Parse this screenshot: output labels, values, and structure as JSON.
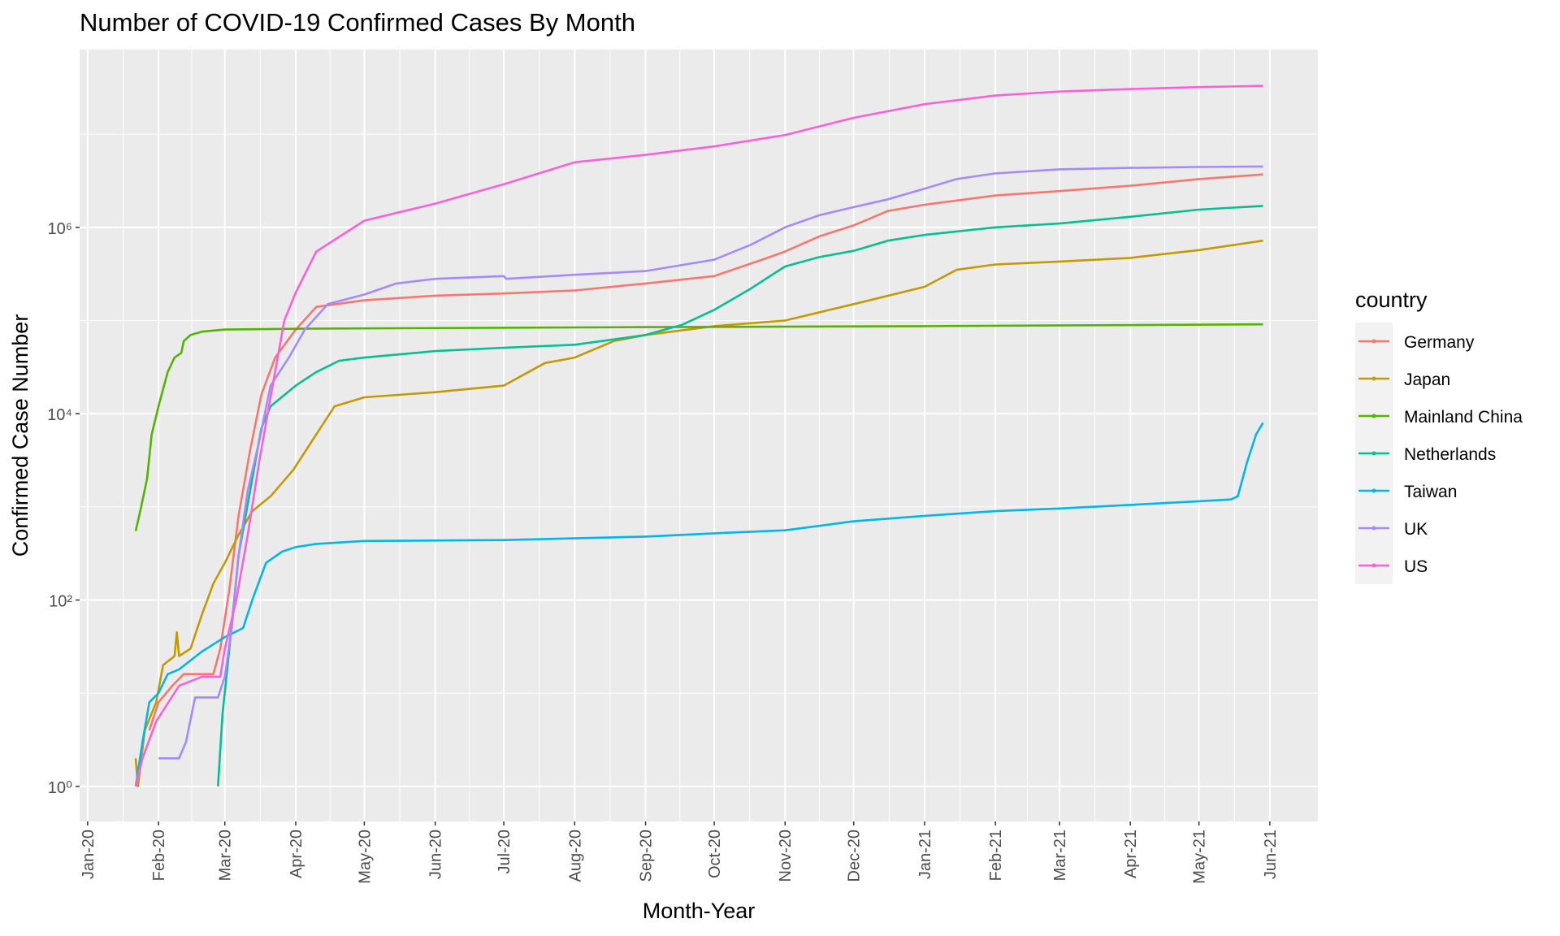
{
  "chart_data": {
    "type": "line",
    "title": "Number of COVID-19 Confirmed Cases By Month",
    "x_label": "Month-Year",
    "y_label": "Confirmed Case Number",
    "legend_title": "country",
    "legend_position": "right",
    "log_y": true,
    "grid": true,
    "xlim": [
      -3.5,
      538
    ],
    "xticks": [
      {
        "value": 0,
        "label": "Jan-20"
      },
      {
        "value": 31,
        "label": "Feb-20"
      },
      {
        "value": 60,
        "label": "Mar-20"
      },
      {
        "value": 91,
        "label": "Apr-20"
      },
      {
        "value": 121,
        "label": "May-20"
      },
      {
        "value": 152,
        "label": "Jun-20"
      },
      {
        "value": 182,
        "label": "Jul-20"
      },
      {
        "value": 213,
        "label": "Aug-20"
      },
      {
        "value": 244,
        "label": "Sep-20"
      },
      {
        "value": 274,
        "label": "Oct-20"
      },
      {
        "value": 305,
        "label": "Nov-20"
      },
      {
        "value": 335,
        "label": "Dec-20"
      },
      {
        "value": 366,
        "label": "Jan-21"
      },
      {
        "value": 397,
        "label": "Feb-21"
      },
      {
        "value": 425,
        "label": "Mar-21"
      },
      {
        "value": 456,
        "label": "Apr-21"
      },
      {
        "value": 486,
        "label": "May-21"
      },
      {
        "value": 517,
        "label": "Jun-21"
      }
    ],
    "ylim": [
      0.42,
      81000000
    ],
    "yticks": [
      {
        "value": 1,
        "label": "10⁰"
      },
      {
        "value": 100,
        "label": "10²"
      },
      {
        "value": 10000,
        "label": "10⁴"
      },
      {
        "value": 1000000,
        "label": "10⁶"
      }
    ],
    "series": [
      {
        "name": "Germany",
        "color": "#F8766D",
        "x": [
          27,
          31,
          37,
          42,
          55,
          58,
          62,
          66,
          71,
          76,
          82,
          91,
          100,
          121,
          152,
          182,
          213,
          244,
          274,
          295,
          305,
          320,
          335,
          350,
          366,
          397,
          425,
          456,
          486,
          514
        ],
        "values": [
          4,
          8,
          12,
          16,
          16,
          30,
          130,
          800,
          4000,
          16000,
          40000,
          80000,
          140000,
          165000,
          185000,
          195000,
          210000,
          250000,
          300000,
          450000,
          550000,
          800000,
          1050000,
          1500000,
          1750000,
          2200000,
          2450000,
          2800000,
          3300000,
          3700000
        ]
      },
      {
        "name": "Japan",
        "color": "#C49A00",
        "x": [
          21,
          22,
          25,
          30,
          33,
          38,
          39,
          40,
          45,
          50,
          55,
          60,
          66,
          72,
          80,
          90,
          100,
          108,
          121,
          152,
          182,
          200,
          213,
          230,
          244,
          274,
          305,
          335,
          366,
          380,
          397,
          425,
          456,
          486,
          514
        ],
        "values": [
          2,
          1,
          4,
          8,
          20,
          25,
          45,
          25,
          30,
          70,
          150,
          250,
          500,
          900,
          1300,
          2500,
          6000,
          12000,
          15000,
          17000,
          20000,
          35000,
          40000,
          60000,
          70000,
          87000,
          100000,
          150000,
          230000,
          350000,
          400000,
          430000,
          470000,
          570000,
          720000
        ]
      },
      {
        "name": "Mainland China",
        "color": "#53B400",
        "x": [
          21,
          23,
          26,
          28,
          31,
          35,
          38,
          41,
          42,
          45,
          50,
          60,
          100,
          244,
          366,
          514
        ],
        "values": [
          550,
          900,
          2000,
          6000,
          12000,
          28000,
          40000,
          45000,
          60000,
          70000,
          76000,
          80000,
          82000,
          85000,
          87000,
          91000
        ]
      },
      {
        "name": "Netherlands",
        "color": "#00C094",
        "x": [
          57,
          59,
          62,
          66,
          72,
          76,
          80,
          91,
          100,
          110,
          121,
          152,
          182,
          213,
          244,
          260,
          274,
          290,
          305,
          320,
          335,
          350,
          366,
          397,
          425,
          456,
          486,
          514
        ],
        "values": [
          1,
          6,
          30,
          300,
          2000,
          7000,
          12000,
          20000,
          28000,
          37000,
          40000,
          47000,
          51000,
          55000,
          70000,
          90000,
          130000,
          220000,
          380000,
          480000,
          560000,
          720000,
          830000,
          1000000,
          1100000,
          1300000,
          1550000,
          1700000
        ]
      },
      {
        "name": "Taiwan",
        "color": "#00B6EB",
        "x": [
          21,
          24,
          27,
          31,
          35,
          40,
          50,
          60,
          68,
          72,
          78,
          85,
          91,
          100,
          121,
          182,
          244,
          274,
          305,
          335,
          366,
          397,
          425,
          456,
          486,
          500,
          503,
          507,
          511,
          514
        ],
        "values": [
          1,
          3,
          8,
          10,
          16,
          18,
          28,
          40,
          50,
          100,
          250,
          330,
          370,
          400,
          430,
          440,
          480,
          520,
          560,
          700,
          800,
          900,
          960,
          1050,
          1150,
          1200,
          1300,
          3000,
          6000,
          8000
        ]
      },
      {
        "name": "UK",
        "color": "#A58AFF",
        "x": [
          31,
          40,
          43,
          47,
          57,
          60,
          63,
          66,
          70,
          75,
          80,
          88,
          95,
          105,
          121,
          135,
          152,
          182,
          183,
          213,
          244,
          274,
          290,
          305,
          320,
          335,
          350,
          366,
          380,
          397,
          425,
          456,
          486,
          514
        ],
        "values": [
          2,
          2,
          3,
          9,
          9,
          15,
          50,
          300,
          1500,
          5000,
          20000,
          40000,
          80000,
          150000,
          190000,
          250000,
          280000,
          300000,
          280000,
          310000,
          340000,
          450000,
          650000,
          1000000,
          1350000,
          1650000,
          2000000,
          2600000,
          3300000,
          3800000,
          4200000,
          4350000,
          4450000,
          4500000
        ]
      },
      {
        "name": "US",
        "color": "#FB61D7",
        "x": [
          21,
          24,
          30,
          40,
          50,
          58,
          60,
          65,
          70,
          75,
          80,
          86,
          91,
          100,
          121,
          152,
          182,
          213,
          244,
          274,
          305,
          335,
          366,
          397,
          425,
          456,
          486,
          514
        ],
        "values": [
          1,
          2,
          5,
          12,
          15,
          15,
          30,
          100,
          500,
          3000,
          15000,
          100000,
          200000,
          550000,
          1180000,
          1800000,
          2900000,
          5000000,
          6000000,
          7400000,
          9800000,
          15000000,
          21000000,
          26000000,
          28700000,
          30500000,
          32000000,
          33000000
        ]
      }
    ]
  }
}
